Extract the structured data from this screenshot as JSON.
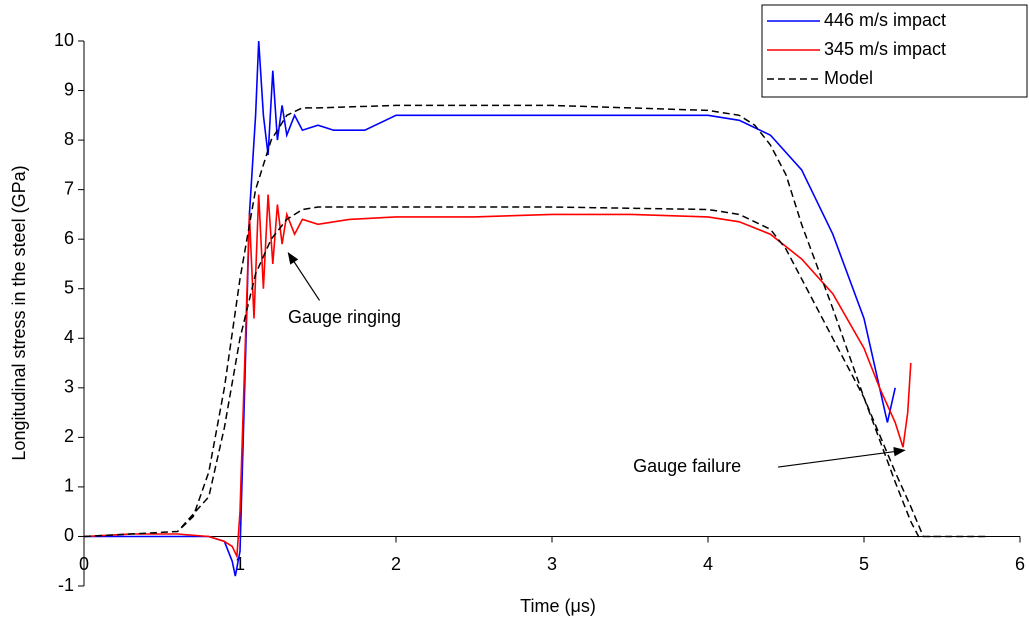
{
  "chart_data": {
    "type": "line",
    "x_label": "Time (μs)",
    "y_label": "Longitudinal stress in the steel (GPa)",
    "xlim": [
      0,
      6
    ],
    "ylim": [
      -1,
      10
    ],
    "xticks": [
      0,
      1,
      2,
      3,
      4,
      5,
      6
    ],
    "yticks": [
      -1,
      0,
      1,
      2,
      3,
      4,
      5,
      6,
      7,
      8,
      9,
      10
    ],
    "legend": "top-right",
    "series": [
      {
        "name": "446 m/s impact",
        "color": "#0000ff",
        "dash": false,
        "x": [
          0,
          0.3,
          0.6,
          0.8,
          0.9,
          0.95,
          0.97,
          1.0,
          1.03,
          1.06,
          1.1,
          1.12,
          1.15,
          1.18,
          1.21,
          1.24,
          1.27,
          1.3,
          1.35,
          1.4,
          1.5,
          1.6,
          1.8,
          2.0,
          2.2,
          2.5,
          3.0,
          3.5,
          4.0,
          4.2,
          4.4,
          4.6,
          4.8,
          5.0,
          5.1,
          5.15,
          5.2
        ],
        "values": [
          0,
          0,
          0,
          0,
          -0.1,
          -0.5,
          -0.8,
          -0.3,
          3,
          6.5,
          8.5,
          10,
          8.5,
          7.7,
          9.4,
          8,
          8.7,
          8.1,
          8.5,
          8.2,
          8.3,
          8.2,
          8.2,
          8.5,
          8.5,
          8.5,
          8.5,
          8.5,
          8.5,
          8.4,
          8.1,
          7.4,
          6.1,
          4.4,
          3.0,
          2.3,
          3.0
        ]
      },
      {
        "name": "345 m/s impact",
        "color": "#ff0000",
        "dash": false,
        "x": [
          0,
          0.3,
          0.6,
          0.8,
          0.9,
          0.95,
          0.98,
          1.0,
          1.03,
          1.06,
          1.09,
          1.12,
          1.15,
          1.18,
          1.21,
          1.24,
          1.27,
          1.3,
          1.35,
          1.4,
          1.5,
          1.7,
          2.0,
          2.5,
          3.0,
          3.5,
          4.0,
          4.2,
          4.4,
          4.6,
          4.8,
          5.0,
          5.1,
          5.2,
          5.25,
          5.28,
          5.3
        ],
        "values": [
          0,
          0.05,
          0.05,
          0,
          -0.1,
          -0.2,
          -0.4,
          0.5,
          3.5,
          6.5,
          4.4,
          6.9,
          5,
          6.9,
          5.5,
          6.7,
          5.9,
          6.5,
          6.1,
          6.4,
          6.3,
          6.4,
          6.45,
          6.45,
          6.5,
          6.5,
          6.45,
          6.35,
          6.1,
          5.6,
          4.9,
          3.8,
          3,
          2.3,
          1.8,
          2.5,
          3.5
        ]
      },
      {
        "name": "Model",
        "color": "#000000",
        "dash": true,
        "x": [
          0,
          0.6,
          0.7,
          0.8,
          0.9,
          1.0,
          1.1,
          1.2,
          1.3,
          1.4,
          1.5,
          2,
          3,
          4,
          4.2,
          4.3,
          4.4,
          4.5,
          4.6,
          4.8,
          5.0,
          5.2,
          5.3,
          5.35,
          5.4,
          5.8,
          null,
          0,
          0.6,
          0.8,
          0.9,
          1.0,
          1.1,
          1.2,
          1.3,
          1.4,
          1.5,
          2,
          3,
          4,
          4.2,
          4.4,
          4.5,
          4.6,
          4.8,
          5.0,
          5.2,
          5.3,
          5.38,
          5.45
        ],
        "values": [
          0,
          0.1,
          0.4,
          1.3,
          3,
          5.2,
          7,
          8,
          8.5,
          8.65,
          8.65,
          8.7,
          8.7,
          8.6,
          8.5,
          8.3,
          7.9,
          7.3,
          6.3,
          4.6,
          2.8,
          1.1,
          0.3,
          0,
          0,
          0,
          null,
          0,
          0.1,
          0.8,
          2.2,
          4,
          5.3,
          6.0,
          6.4,
          6.6,
          6.65,
          6.65,
          6.65,
          6.6,
          6.5,
          6.2,
          5.8,
          5.2,
          4,
          2.8,
          1.3,
          0.6,
          0,
          0
        ]
      }
    ],
    "annotations": [
      {
        "text": "Gauge ringing",
        "x": 1.67,
        "y": 4.4,
        "tip_x": 1.31,
        "tip_y": 5.72
      },
      {
        "text": "Gauge failure",
        "x": 3.52,
        "y": 1.4,
        "tip_x": 5.26,
        "tip_y": 1.74
      }
    ]
  }
}
